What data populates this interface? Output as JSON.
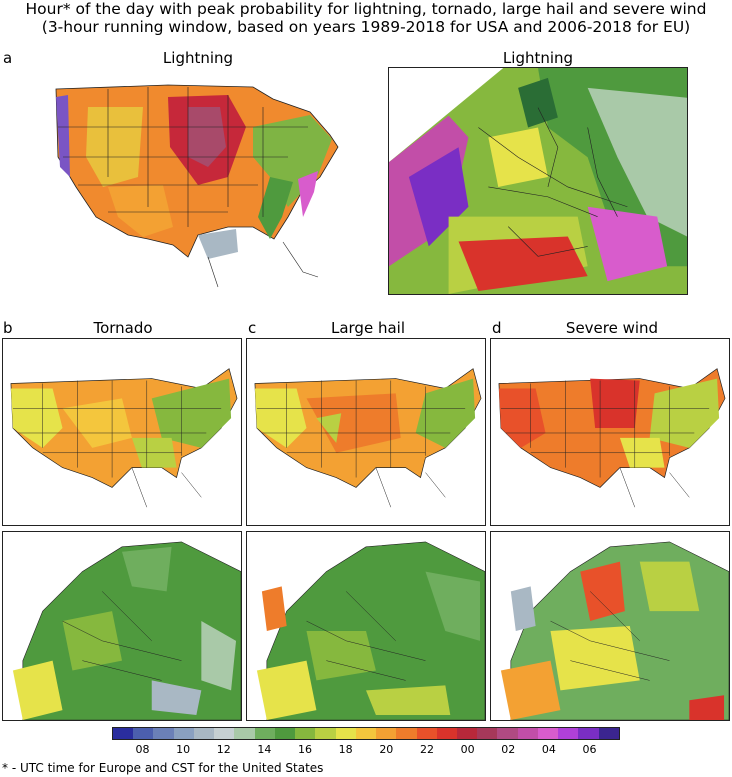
{
  "title": {
    "line1": "Hour* of the day with peak probability for lightning, tornado, large hail and severe wind",
    "line2": "(3-hour running window, based on years 1989-2018 for USA and 2006-2018 for EU)"
  },
  "panels": {
    "a": {
      "letter": "a",
      "title_us": "Lightning",
      "title_eu": "Lightning"
    },
    "b": {
      "letter": "b",
      "title": "Tornado"
    },
    "c": {
      "letter": "c",
      "title": "Large hail"
    },
    "d": {
      "letter": "d",
      "title": "Severe wind"
    }
  },
  "colorbar": {
    "colors": [
      "#2a2d9e",
      "#4c5fae",
      "#6b80b8",
      "#8aa0c0",
      "#a9b8c4",
      "#c6d0d2",
      "#a9c9a8",
      "#6fae5e",
      "#4f9a3e",
      "#86b83e",
      "#b9d043",
      "#e6e34a",
      "#f4c63d",
      "#f3a133",
      "#ee7c2b",
      "#e8512a",
      "#d9332b",
      "#b8283a",
      "#a6385a",
      "#b04a82",
      "#c24ea8",
      "#d85ccc",
      "#b040d8",
      "#7a2ec4",
      "#3b2590"
    ],
    "tick_labels": [
      "08",
      "10",
      "12",
      "14",
      "16",
      "18",
      "20",
      "22",
      "00",
      "02",
      "04",
      "06"
    ]
  },
  "footnote": "* - UTC time for Europe and CST for the United States"
}
